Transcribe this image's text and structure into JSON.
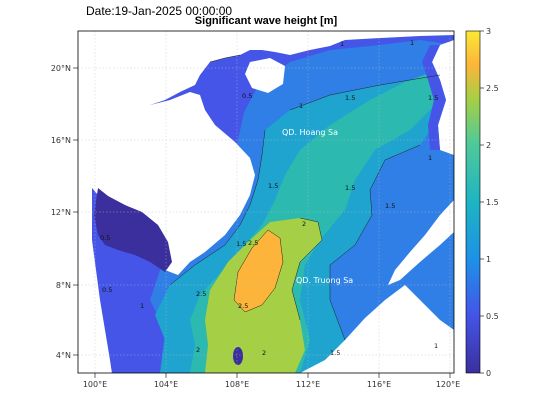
{
  "header": {
    "date": "Date:19-Jan-2025 00:00:00",
    "title": "Significant wave height [m]"
  },
  "map": {
    "x_ticks": [
      "100°E",
      "104°E",
      "108°E",
      "112°E",
      "116°E",
      "120°E"
    ],
    "y_ticks": [
      "20°N",
      "16°N",
      "12°N",
      "8°N",
      "4°N"
    ],
    "place_labels": {
      "hoang_sa": "QD. Hoang Sa",
      "truong_sa": "QD. Truong Sa"
    },
    "contour_labels": [
      "1",
      "1.5",
      "2",
      "2.5",
      "0.5"
    ]
  },
  "colorbar": {
    "ticks": [
      "3",
      "2.5",
      "2",
      "1.5",
      "1",
      "0.5",
      "0"
    ],
    "colors": [
      "#f9e936",
      "#fcb53a",
      "#a5cf45",
      "#4fc99a",
      "#1ea4cf",
      "#2f7fe6",
      "#4455e8",
      "#3b2f9e"
    ]
  },
  "colors": {
    "land": "#ffffff",
    "water_bg": "#2f7fe6"
  }
}
